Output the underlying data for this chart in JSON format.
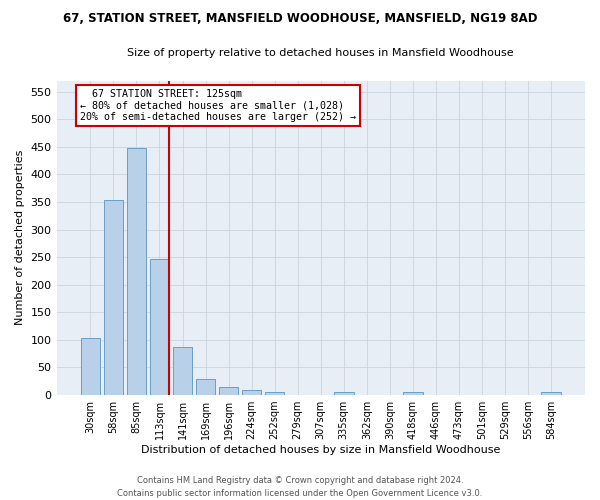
{
  "title1": "67, STATION STREET, MANSFIELD WOODHOUSE, MANSFIELD, NG19 8AD",
  "title2": "Size of property relative to detached houses in Mansfield Woodhouse",
  "xlabel": "Distribution of detached houses by size in Mansfield Woodhouse",
  "ylabel": "Number of detached properties",
  "footnote": "Contains HM Land Registry data © Crown copyright and database right 2024.\nContains public sector information licensed under the Open Government Licence v3.0.",
  "bar_labels": [
    "30sqm",
    "58sqm",
    "85sqm",
    "113sqm",
    "141sqm",
    "169sqm",
    "196sqm",
    "224sqm",
    "252sqm",
    "279sqm",
    "307sqm",
    "335sqm",
    "362sqm",
    "390sqm",
    "418sqm",
    "446sqm",
    "473sqm",
    "501sqm",
    "529sqm",
    "556sqm",
    "584sqm"
  ],
  "bar_values": [
    103,
    354,
    448,
    246,
    88,
    30,
    14,
    9,
    6,
    0,
    0,
    6,
    0,
    0,
    6,
    0,
    0,
    0,
    0,
    0,
    6
  ],
  "bar_color": "#b8d0e8",
  "bar_edge_color": "#6a9fc8",
  "grid_color": "#c8d4e0",
  "background_color": "#e8eef6",
  "annotation_line1": "  67 STATION STREET: 125sqm",
  "annotation_line2": "← 80% of detached houses are smaller (1,028)",
  "annotation_line3": "20% of semi-detached houses are larger (252) →",
  "vline_x": 3.42,
  "vline_color": "#cc0000",
  "annotation_box_color": "#ffffff",
  "annotation_box_edge_color": "#cc0000",
  "ylim": [
    0,
    570
  ],
  "yticks": [
    0,
    50,
    100,
    150,
    200,
    250,
    300,
    350,
    400,
    450,
    500,
    550
  ]
}
